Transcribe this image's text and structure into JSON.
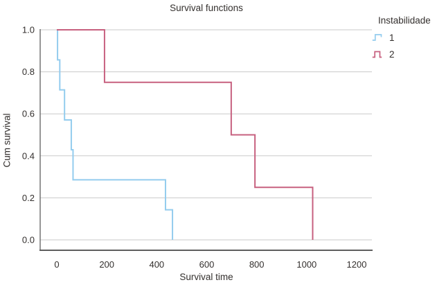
{
  "chart_data": {
    "type": "line",
    "subtype": "kaplan-meier-step",
    "title": "Survival functions",
    "xlabel": "Survival time",
    "ylabel": "Cum survival",
    "legend_title": "Instabilidade",
    "legend_position": "right",
    "grid": "horizontal",
    "xticks": [
      0,
      200,
      400,
      600,
      800,
      1000,
      1200
    ],
    "yticks": [
      "0.0",
      "0.2",
      "0.4",
      "0.6",
      "0.8",
      "1.0"
    ],
    "xlim": [
      -66,
      1262
    ],
    "ylim": [
      0.0,
      1.0
    ],
    "series": [
      {
        "name": "1",
        "color": "#93CCEE",
        "points": [
          [
            0,
            1.0
          ],
          [
            3,
            0.857
          ],
          [
            12,
            0.714
          ],
          [
            31,
            0.571
          ],
          [
            58,
            0.429
          ],
          [
            65,
            0.286
          ],
          [
            435,
            0.143
          ],
          [
            463,
            0.0
          ]
        ]
      },
      {
        "name": "2",
        "color": "#C7607F",
        "points": [
          [
            0,
            1.0
          ],
          [
            191,
            0.75
          ],
          [
            698,
            0.5
          ],
          [
            793,
            0.25
          ],
          [
            1024,
            0.0
          ]
        ]
      }
    ],
    "colors": {
      "gridline": "#C9C9C9",
      "axis": "#5E5E5E",
      "text": "#332F2D"
    }
  }
}
